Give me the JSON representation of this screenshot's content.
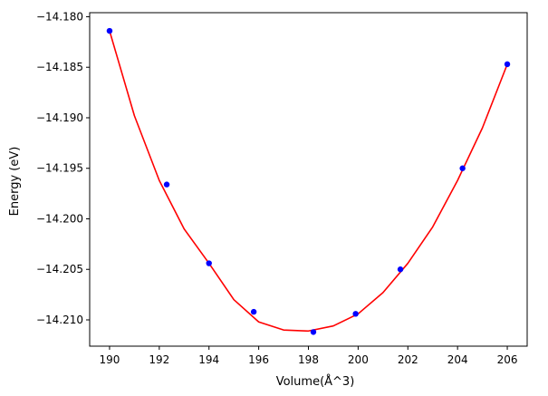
{
  "chart_data": {
    "type": "scatter",
    "xlabel": "Volume(Å^3)",
    "ylabel": "Energy (eV)",
    "xlim": [
      189.2,
      206.8
    ],
    "ylim": [
      -14.2126,
      -14.1796
    ],
    "xticks": [
      190,
      192,
      194,
      196,
      198,
      200,
      202,
      204,
      206
    ],
    "xtick_labels": [
      "190",
      "192",
      "194",
      "196",
      "198",
      "200",
      "202",
      "204",
      "206"
    ],
    "yticks": [
      -14.18,
      -14.185,
      -14.19,
      -14.195,
      -14.2,
      -14.205,
      -14.21
    ],
    "ytick_labels": [
      "−14.180",
      "−14.185",
      "−14.190",
      "−14.195",
      "−14.200",
      "−14.205",
      "−14.210"
    ],
    "grid": false,
    "series": [
      {
        "kind": "points",
        "color": "#0000ff",
        "x": [
          190.0,
          192.3,
          194.0,
          195.8,
          198.2,
          199.9,
          201.7,
          204.2,
          206.0
        ],
        "y": [
          -14.1814,
          -14.1966,
          -14.2044,
          -14.2092,
          -14.2112,
          -14.2094,
          -14.205,
          -14.195,
          -14.1847
        ]
      },
      {
        "kind": "fit-curve",
        "color": "#ff0000",
        "x": [
          190.0,
          191.0,
          192.0,
          193.0,
          194.0,
          195.0,
          196.0,
          197.0,
          198.0,
          199.0,
          200.0,
          201.0,
          202.0,
          203.0,
          204.0,
          205.0,
          206.0
        ],
        "y": [
          -14.1814,
          -14.1898,
          -14.1962,
          -14.201,
          -14.2044,
          -14.208,
          -14.2102,
          -14.211,
          -14.2111,
          -14.2106,
          -14.2094,
          -14.2073,
          -14.2044,
          -14.2008,
          -14.1962,
          -14.191,
          -14.1847
        ]
      }
    ]
  }
}
